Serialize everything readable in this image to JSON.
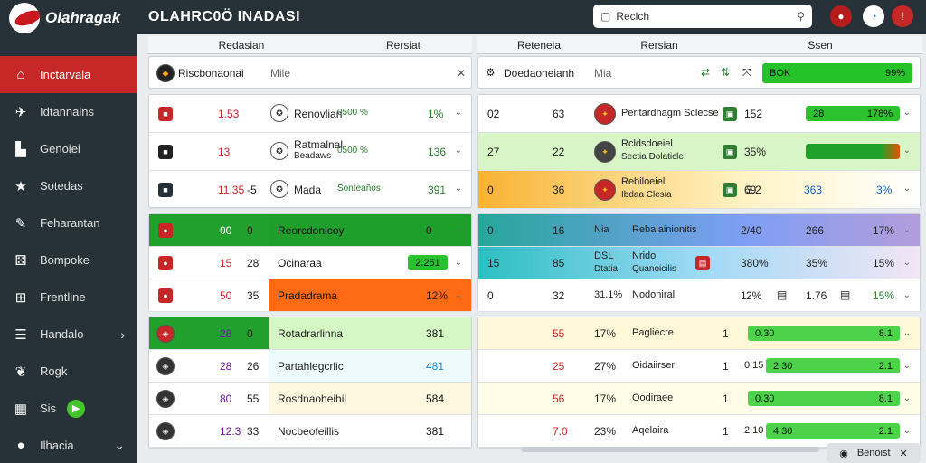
{
  "app": {
    "logo_text": "Olahragak",
    "title": "OLAHRC0Ö INADASI"
  },
  "search": {
    "value": "Reclch"
  },
  "nav": [
    {
      "label": "Inctarvala",
      "icon": "home-icon",
      "glyph": "⌂",
      "active": true
    },
    {
      "label": "Idtannalns",
      "icon": "pin-icon",
      "glyph": "✈"
    },
    {
      "label": "Genoiei",
      "icon": "building-icon",
      "glyph": "▙"
    },
    {
      "label": "Sotedas",
      "icon": "star-icon",
      "glyph": "★"
    },
    {
      "label": "Feharantan",
      "icon": "edit-icon",
      "glyph": "✎"
    },
    {
      "label": "Bompoke",
      "icon": "dice-icon",
      "glyph": "⚄"
    },
    {
      "label": "Frentline",
      "icon": "lock-icon",
      "glyph": "⊞"
    },
    {
      "label": "Handalo",
      "icon": "list-icon",
      "glyph": "☰",
      "arrow": "›"
    },
    {
      "label": "Rogk",
      "icon": "leaf-icon",
      "glyph": "❦"
    },
    {
      "label": "Sis",
      "icon": "grid-icon",
      "glyph": "▦",
      "badge": "▶"
    },
    {
      "label": "Ilhacia",
      "icon": "user-icon",
      "glyph": "●",
      "arrow": "⌄"
    }
  ],
  "headers": {
    "left1": "Redasian",
    "left2": "Rersiat",
    "right1": "Reteneia",
    "right2": "Rersian",
    "right3": "Ssen"
  },
  "filters": {
    "left": {
      "name": "Riscbonaonai",
      "sub": "Mile",
      "close": "✕"
    },
    "right": {
      "name": "Doedaoneianh",
      "sub": "Mia",
      "score": "BOK",
      "v1": "99%"
    }
  },
  "left_rows": [
    {
      "a": "1.53",
      "team": "Renovlian",
      "tag": "0500 %",
      "pct": "1%"
    },
    {
      "a": "13",
      "team": "Ratmalnal",
      "sub": "Beadaws",
      "tag": "0500 %",
      "pct": "136"
    },
    {
      "a": "11.35",
      "b": "-5",
      "team": "Mada",
      "tag": "Sonteaños",
      "pct": "391"
    }
  ],
  "left_mid": [
    {
      "a": "00",
      "b": "0",
      "team": "Reorcdonicoy",
      "pct": "0"
    },
    {
      "a": "15",
      "b": "28",
      "team": "Ocinaraa",
      "pct": "2.251"
    },
    {
      "a": "50",
      "b": "35",
      "team": "Pradadrama",
      "pct": "12%"
    }
  ],
  "left_low": [
    {
      "a": "28",
      "b": "0",
      "team": "Rotadrarlinna",
      "pct": "381"
    },
    {
      "a": "28",
      "b": "26",
      "team": "Partahlegcrlic",
      "pct": "481"
    },
    {
      "a": "80",
      "b": "55",
      "team": "Rosdnaoheihil",
      "pct": "584"
    },
    {
      "a": "12.3",
      "b": "33",
      "team": "Nocbeofeillis",
      "pct": "381"
    }
  ],
  "right_rows": [
    {
      "a": "02",
      "b": "63",
      "team": "Peritardhagm Sclecse",
      "n": "152",
      "pill": "28",
      "pv": "178%"
    },
    {
      "a": "27",
      "b": "22",
      "team": "Rcldsdoeiel",
      "sub": "Sectia Dolaticle",
      "n": "35%",
      "pill": "",
      "pv": ""
    },
    {
      "a": "0",
      "b": "36",
      "team": "Rebiloeiel",
      "sub": "Ibdaa Clesia",
      "n": "69",
      "m": "3.2",
      "v": "363",
      "pv": "3%"
    }
  ],
  "right_mid": [
    {
      "a": "0",
      "b": "16",
      "c": "Nia",
      "team": "Rebalainionitis",
      "n": "2/40",
      "v": "266",
      "pv": "17%"
    },
    {
      "a": "15",
      "b": "85",
      "c": "DSL",
      "sub": "Dtatia",
      "team": "Nrido",
      "team2": "Quanoicilis",
      "n": "380%",
      "v": "35%",
      "pv": "15%"
    },
    {
      "a": "0",
      "b": "32",
      "c": "31.1%",
      "team": "Nodoniral",
      "n": "1",
      "m": "2%",
      "v": "1.76",
      "pv": "15%"
    }
  ],
  "right_low": [
    {
      "a": "55",
      "b": "17%",
      "team": "Pagliecre",
      "n": "1",
      "pill": "0.30",
      "pv": "8.1"
    },
    {
      "a": "25",
      "b": "27%",
      "team": "Oidaiirser",
      "n": "1",
      "m": "0.15",
      "pill": "2.30",
      "pv": "2.1"
    },
    {
      "a": "56",
      "b": "17%",
      "team": "Oodiraee",
      "n": "1",
      "pill": "0.30",
      "pv": "8.1"
    },
    {
      "a": "7.0",
      "b": "23%",
      "team": "Aqelaira",
      "n": "1",
      "m": "2.10",
      "pill": "4.30",
      "pv": "2.1"
    }
  ],
  "footer": {
    "label": "Benoist",
    "close": "✕"
  }
}
